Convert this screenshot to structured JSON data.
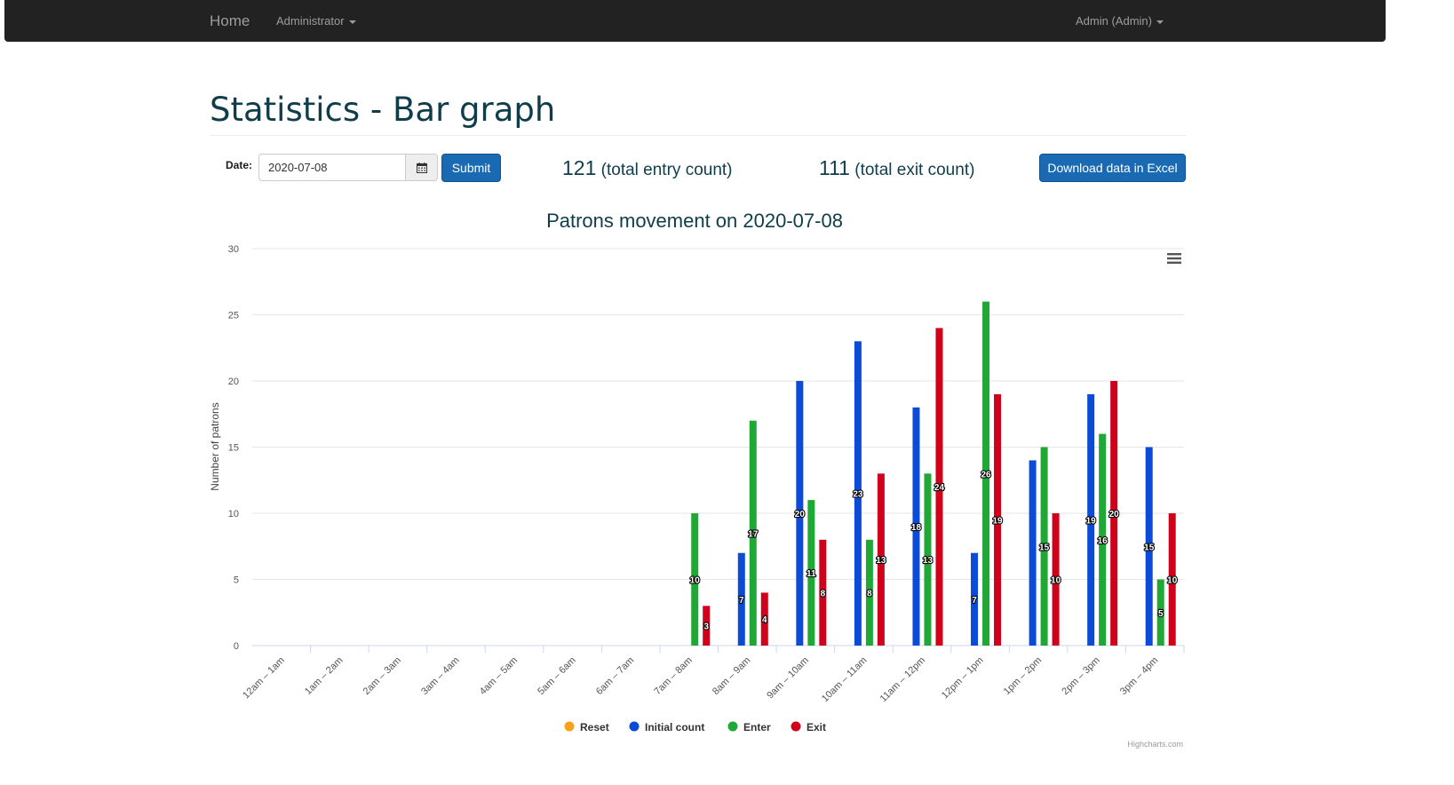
{
  "navbar": {
    "home_label": "Home",
    "admin_menu_label": "Administrator",
    "user_menu_label": "Admin (Admin)"
  },
  "page": {
    "title": "Statistics - Bar graph"
  },
  "form": {
    "date_label": "Date:",
    "date_value": "2020-07-08",
    "submit_label": "Submit",
    "download_label": "Download data in Excel"
  },
  "counts": {
    "entry_value": "121",
    "entry_text": "(total entry count)",
    "exit_value": "111",
    "exit_text": "(total exit count)"
  },
  "chart_data": {
    "type": "bar",
    "title": "Patrons movement on 2020-07-08",
    "xlabel": "",
    "ylabel": "Number of patrons",
    "ylim": [
      0,
      30
    ],
    "yticks": [
      0,
      5,
      10,
      15,
      20,
      25,
      30
    ],
    "grid": true,
    "legend_position": "bottom-center",
    "credits": "Highcharts.com",
    "categories": [
      "12am – 1am",
      "1am – 2am",
      "2am – 3am",
      "3am – 4am",
      "4am – 5am",
      "5am – 6am",
      "6am – 7am",
      "7am – 8am",
      "8am – 9am",
      "9am – 10am",
      "10am – 11am",
      "11am – 12pm",
      "12pm – 1pm",
      "1pm – 2pm",
      "2pm – 3pm",
      "3pm – 4pm"
    ],
    "series": [
      {
        "name": "Reset",
        "color": "#f7a21b",
        "values": [
          0,
          0,
          0,
          0,
          0,
          0,
          0,
          0,
          0,
          0,
          0,
          0,
          0,
          0,
          0,
          0
        ]
      },
      {
        "name": "Initial count",
        "color": "#0c4bd8",
        "values": [
          0,
          0,
          0,
          0,
          0,
          0,
          0,
          0,
          7,
          20,
          23,
          18,
          7,
          14,
          19,
          15
        ]
      },
      {
        "name": "Enter",
        "color": "#1fa835",
        "values": [
          0,
          0,
          0,
          0,
          0,
          0,
          0,
          10,
          17,
          11,
          8,
          13,
          26,
          15,
          16,
          5
        ]
      },
      {
        "name": "Exit",
        "color": "#d0021b",
        "values": [
          0,
          0,
          0,
          0,
          0,
          0,
          0,
          3,
          4,
          8,
          13,
          24,
          19,
          10,
          20,
          10
        ]
      }
    ],
    "data_labels": [
      {
        "category": "7am – 8am",
        "series": "Enter",
        "text": "10"
      },
      {
        "category": "7am – 8am",
        "series": "Exit",
        "text": "3"
      },
      {
        "category": "8am – 9am",
        "series": "Initial count",
        "text": "7"
      },
      {
        "category": "8am – 9am",
        "series": "Enter",
        "text": "17"
      },
      {
        "category": "8am – 9am",
        "series": "Exit",
        "text": "4"
      },
      {
        "category": "9am – 10am",
        "series": "Initial count",
        "text": "20"
      },
      {
        "category": "9am – 10am",
        "series": "Enter",
        "text": "11"
      },
      {
        "category": "9am – 10am",
        "series": "Exit",
        "text": "8"
      },
      {
        "category": "10am – 11am",
        "series": "Initial count",
        "text": "23"
      },
      {
        "category": "10am – 11am",
        "series": "Enter",
        "text": "8"
      },
      {
        "category": "10am – 11am",
        "series": "Exit",
        "text": "13"
      },
      {
        "category": "11am – 12pm",
        "series": "Initial count",
        "text": "18"
      },
      {
        "category": "11am – 12pm",
        "series": "Enter",
        "text": "13"
      },
      {
        "category": "11am – 12pm",
        "series": "Exit",
        "text": "24"
      },
      {
        "category": "12pm – 1pm",
        "series": "Initial count",
        "text": "7"
      },
      {
        "category": "12pm – 1pm",
        "series": "Enter",
        "text": "26"
      },
      {
        "category": "12pm – 1pm",
        "series": "Exit",
        "text": "19"
      },
      {
        "category": "1pm – 2pm",
        "series": "Enter",
        "text": "15"
      },
      {
        "category": "1pm – 2pm",
        "series": "Exit",
        "text": "10"
      },
      {
        "category": "2pm – 3pm",
        "series": "Initial count",
        "text": "19"
      },
      {
        "category": "2pm – 3pm",
        "series": "Enter",
        "text": "16"
      },
      {
        "category": "2pm – 3pm",
        "series": "Exit",
        "text": "20"
      },
      {
        "category": "3pm – 4pm",
        "series": "Initial count",
        "text": "15"
      },
      {
        "category": "3pm – 4pm",
        "series": "Enter",
        "text": "5"
      },
      {
        "category": "3pm – 4pm",
        "series": "Exit",
        "text": "10"
      }
    ]
  },
  "icons": {
    "calendar": "calendar-icon",
    "chart_menu": "hamburger-menu-icon",
    "nav_caret": "caret-down-icon"
  }
}
